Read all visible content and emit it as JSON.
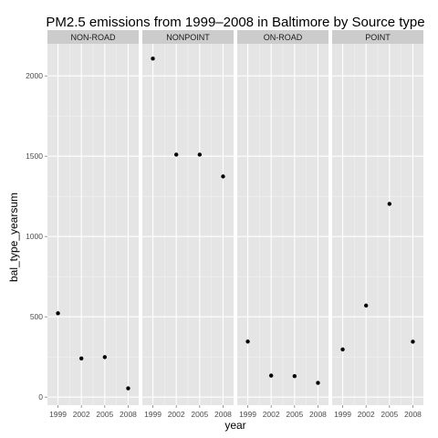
{
  "chart_data": {
    "type": "scatter",
    "title": "PM2.5 emissions from 1999–2008 in Baltimore by Source type",
    "xlabel": "year",
    "ylabel": "bal_type_yearsum",
    "x": [
      1999,
      2002,
      2005,
      2008
    ],
    "x_tick_labels": [
      "1999",
      "2002",
      "2005",
      "2008"
    ],
    "ylim": [
      -50,
      2200
    ],
    "y_ticks": [
      0,
      500,
      1000,
      1500,
      2000
    ],
    "y_tick_labels": [
      "0",
      "500",
      "1000",
      "1500",
      "2000"
    ],
    "facets": [
      {
        "name": "NON-ROAD",
        "values": [
          522,
          241,
          249,
          55
        ]
      },
      {
        "name": "NONPOINT",
        "values": [
          2108,
          1510,
          1510,
          1374
        ]
      },
      {
        "name": "ON-ROAD",
        "values": [
          346,
          134,
          131,
          89
        ]
      },
      {
        "name": "POINT",
        "values": [
          297,
          570,
          1203,
          345
        ]
      }
    ],
    "grid": true,
    "colors": {
      "panel_bg": "#e5e5e5",
      "strip_bg": "#cccccc",
      "grid": "#ffffff",
      "point": "#000000"
    }
  }
}
